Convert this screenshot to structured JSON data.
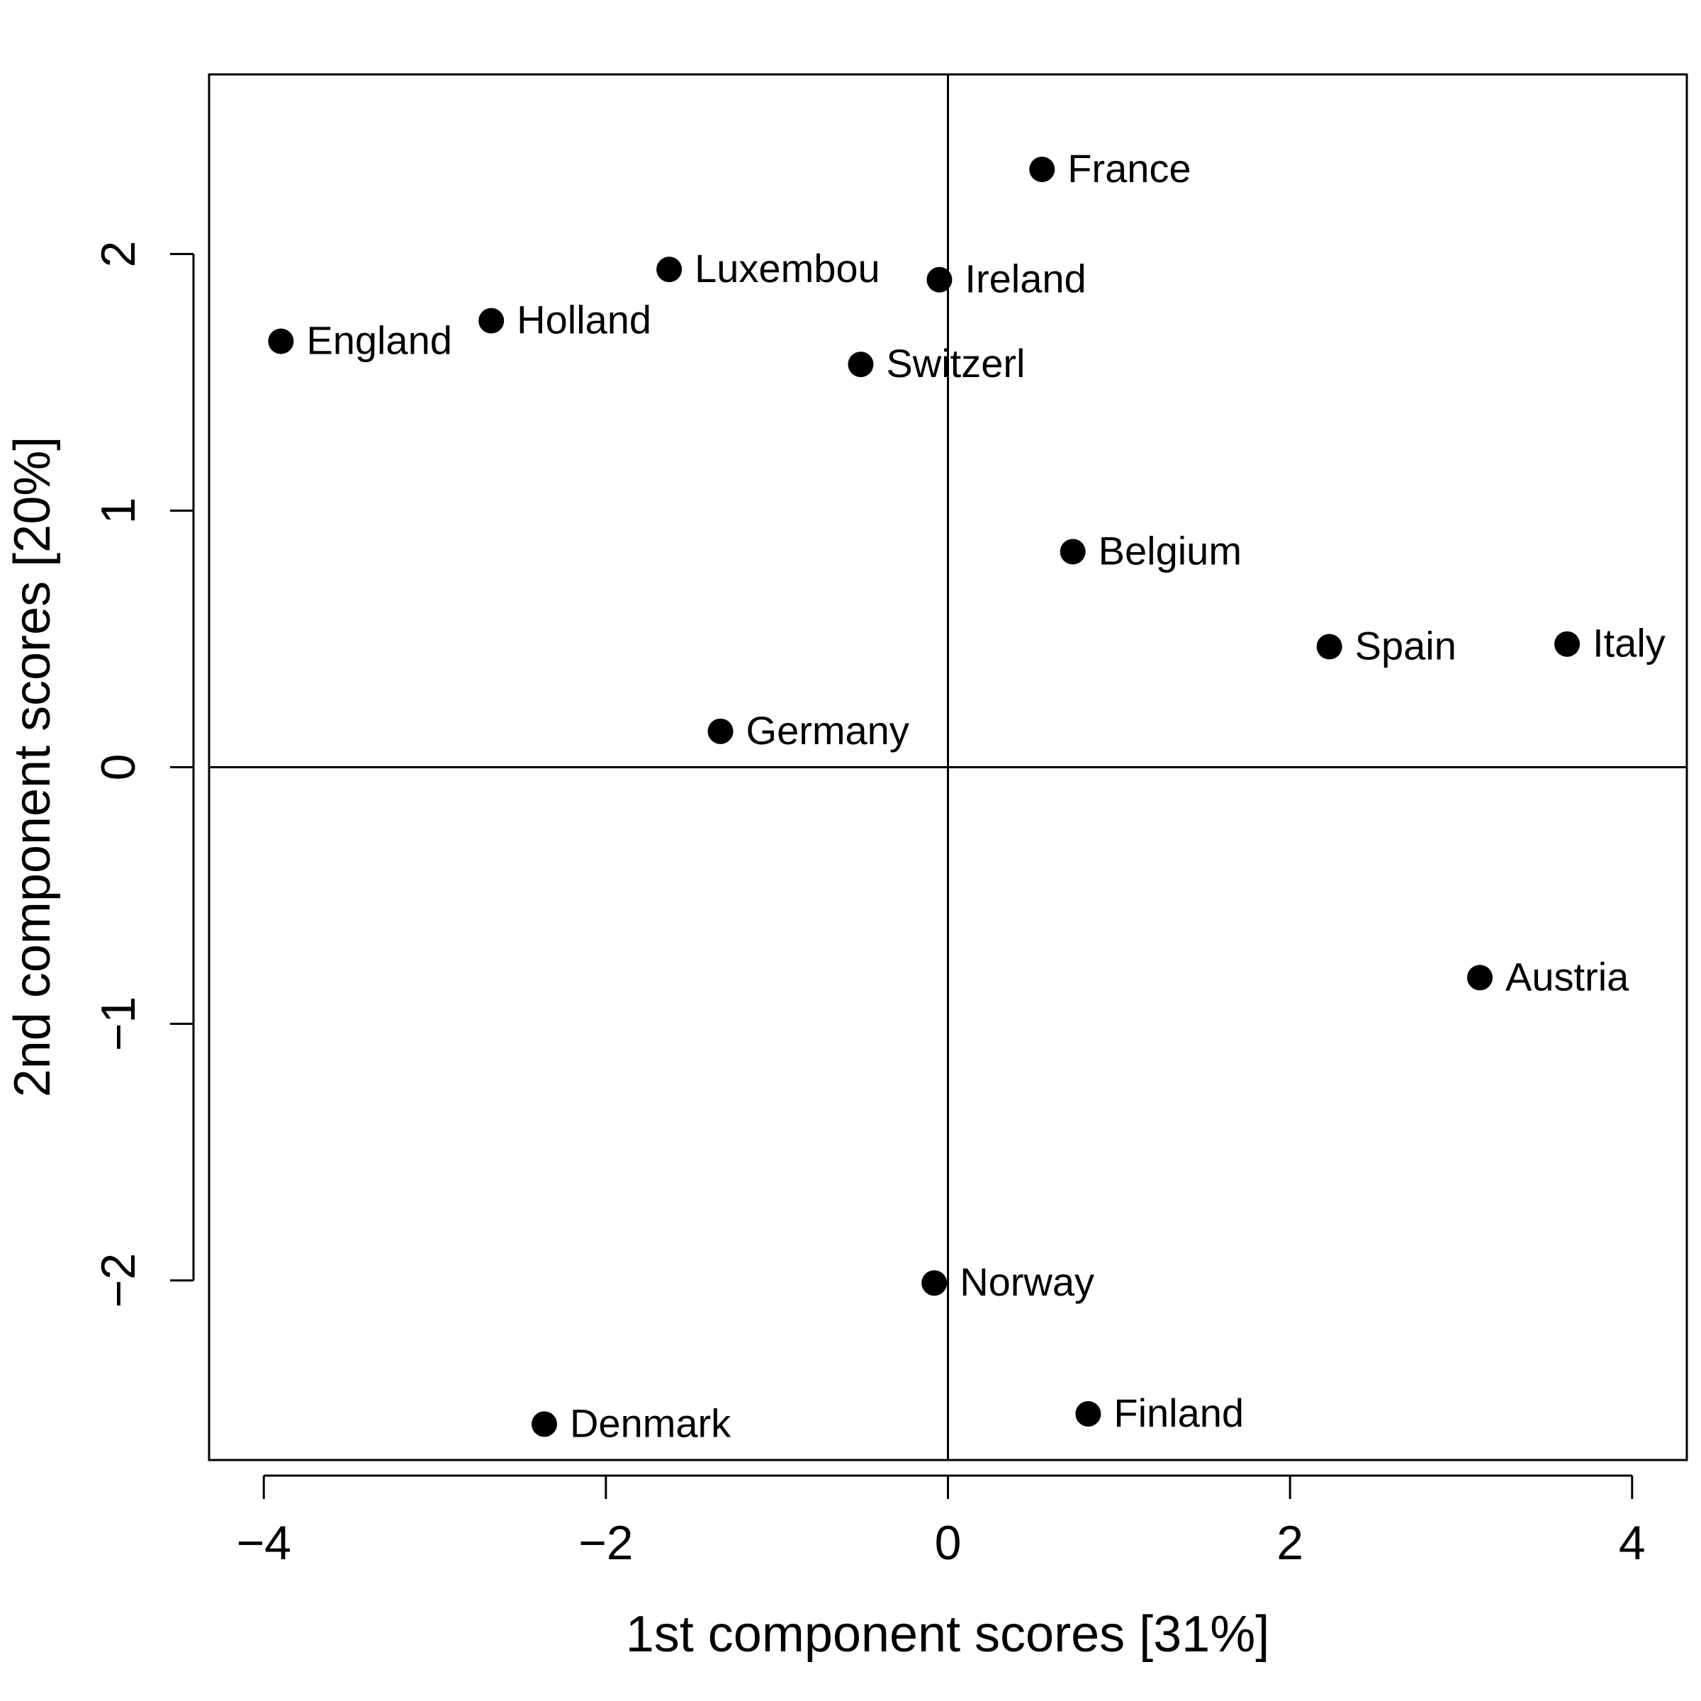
{
  "chart_data": {
    "type": "scatter",
    "title": "",
    "xlabel": "1st component scores [31%]",
    "ylabel": "2nd component scores [20%]",
    "xlim": [
      -4.32,
      4.32
    ],
    "ylim": [
      -2.7,
      2.7
    ],
    "xticks": [
      -4,
      -2,
      0,
      2,
      4
    ],
    "xtick_labels": [
      "−4",
      "−2",
      "0",
      "2",
      "4"
    ],
    "yticks": [
      -2,
      -1,
      0,
      1,
      2
    ],
    "ytick_labels": [
      "−2",
      "−1",
      "0",
      "1",
      "2"
    ],
    "reference_lines": {
      "x": 0,
      "y": 0
    },
    "grid": false,
    "legend": "none",
    "marker_color": "#000000",
    "points": [
      {
        "label": "France",
        "x": 0.55,
        "y": 2.33
      },
      {
        "label": "Luxembou",
        "x": -1.63,
        "y": 1.94
      },
      {
        "label": "Ireland",
        "x": -0.05,
        "y": 1.9
      },
      {
        "label": "England",
        "x": -3.9,
        "y": 1.66
      },
      {
        "label": "Holland",
        "x": -2.67,
        "y": 1.74
      },
      {
        "label": "Switzerl",
        "x": -0.51,
        "y": 1.57
      },
      {
        "label": "Belgium",
        "x": 0.73,
        "y": 0.84
      },
      {
        "label": "Spain",
        "x": 2.23,
        "y": 0.47
      },
      {
        "label": "Italy",
        "x": 3.62,
        "y": 0.48
      },
      {
        "label": "Germany",
        "x": -1.33,
        "y": 0.14
      },
      {
        "label": "Austria",
        "x": 3.11,
        "y": -0.82
      },
      {
        "label": "Norway",
        "x": -0.08,
        "y": -2.01
      },
      {
        "label": "Denmark",
        "x": -2.36,
        "y": -2.56
      },
      {
        "label": "Finland",
        "x": 0.82,
        "y": -2.52
      }
    ]
  }
}
